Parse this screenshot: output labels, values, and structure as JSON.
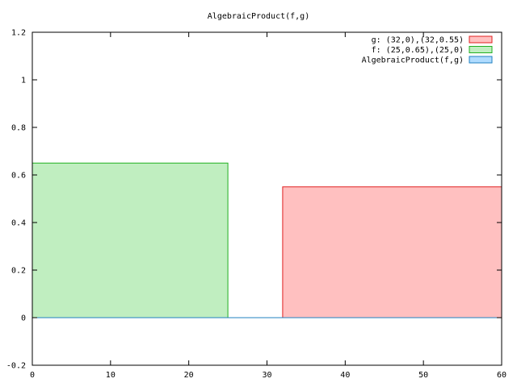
{
  "chart_data": {
    "type": "area",
    "title": "AlgebraicProduct(f,g)",
    "xlabel": "",
    "ylabel": "",
    "xlim": [
      0,
      60
    ],
    "ylim": [
      -0.2,
      1.2
    ],
    "x_ticks": [
      0,
      10,
      20,
      30,
      40,
      50,
      60
    ],
    "y_ticks": [
      -0.2,
      0,
      0.2,
      0.4,
      0.6,
      0.8,
      1,
      1.2
    ],
    "x_tick_labels": [
      "0",
      "10",
      "20",
      "30",
      "40",
      "50",
      "60"
    ],
    "y_tick_labels": [
      "-0.2",
      "0",
      "0.2",
      "0.4",
      "0.6",
      "0.8",
      "1",
      "1.2"
    ],
    "grid": false,
    "legend_position": "top-right",
    "series": [
      {
        "name": "g: (32,0),(32,0.55)",
        "fill": "#ffc0c0",
        "stroke": "#e02020",
        "points": [
          [
            32,
            0
          ],
          [
            32,
            0.55
          ],
          [
            60,
            0.55
          ],
          [
            60,
            0
          ]
        ]
      },
      {
        "name": "f: (25,0.65),(25,0)",
        "fill": "#c0eec0",
        "stroke": "#20b020",
        "points": [
          [
            0,
            0
          ],
          [
            0,
            0.65
          ],
          [
            25,
            0.65
          ],
          [
            25,
            0
          ]
        ]
      },
      {
        "name": "AlgebraicProduct(f,g)",
        "fill": "#b0dcff",
        "stroke": "#2080c0",
        "points": [
          [
            0,
            0
          ],
          [
            60,
            0
          ]
        ]
      }
    ]
  }
}
